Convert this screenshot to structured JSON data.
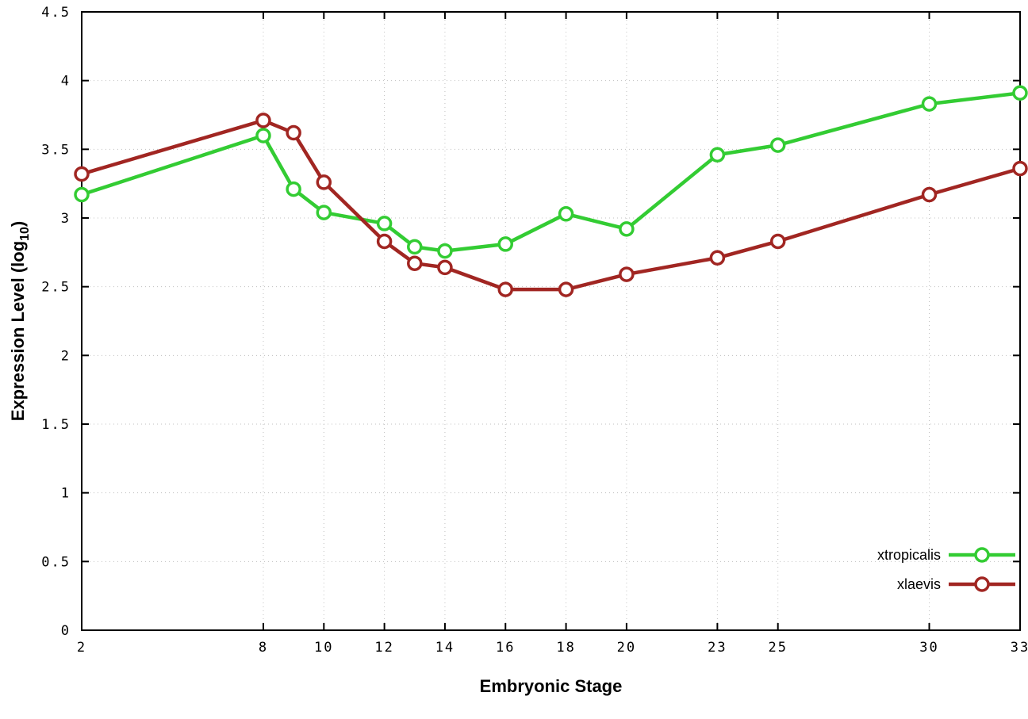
{
  "chart_data": {
    "type": "line",
    "title": "",
    "xlabel": "Embryonic Stage",
    "ylabel": "Expression Level (log10)",
    "ylabel_parts": {
      "prefix": "Expression Level (log",
      "subscript": "10",
      "suffix": ")"
    },
    "xlim": [
      2,
      33
    ],
    "ylim": [
      0,
      4.5
    ],
    "xticks": [
      2,
      8,
      10,
      12,
      14,
      16,
      18,
      20,
      23,
      25,
      30,
      33
    ],
    "xtick_labels": [
      "2",
      "8",
      "10",
      "12",
      "14",
      "16",
      "18",
      "20",
      "23",
      "25",
      "30",
      "33"
    ],
    "yticks": [
      0,
      0.5,
      1,
      1.5,
      2,
      2.5,
      3,
      3.5,
      4,
      4.5
    ],
    "ytick_labels": [
      "0",
      "0.5",
      "1",
      "1.5",
      "2",
      "2.5",
      "3",
      "3.5",
      "4",
      "4.5"
    ],
    "grid": true,
    "legend_position": "bottom-right",
    "x": [
      2,
      8,
      9,
      10,
      12,
      13,
      14,
      16,
      18,
      20,
      23,
      25,
      30,
      33
    ],
    "series": [
      {
        "name": "xtropicalis",
        "color": "#33cc33",
        "values": [
          3.17,
          3.6,
          3.21,
          3.04,
          2.96,
          2.79,
          2.76,
          2.81,
          3.03,
          2.92,
          3.46,
          3.53,
          3.83,
          3.91
        ]
      },
      {
        "name": "xlaevis",
        "color": "#a12622",
        "values": [
          3.32,
          3.71,
          3.62,
          3.26,
          2.83,
          2.67,
          2.64,
          2.48,
          2.48,
          2.59,
          2.71,
          2.83,
          3.17,
          3.36
        ]
      }
    ],
    "marker": {
      "shape": "open-circle",
      "radius": 8
    },
    "colors": {
      "grid": "#c0c0c0",
      "axis": "#000000",
      "background": "#ffffff"
    }
  }
}
